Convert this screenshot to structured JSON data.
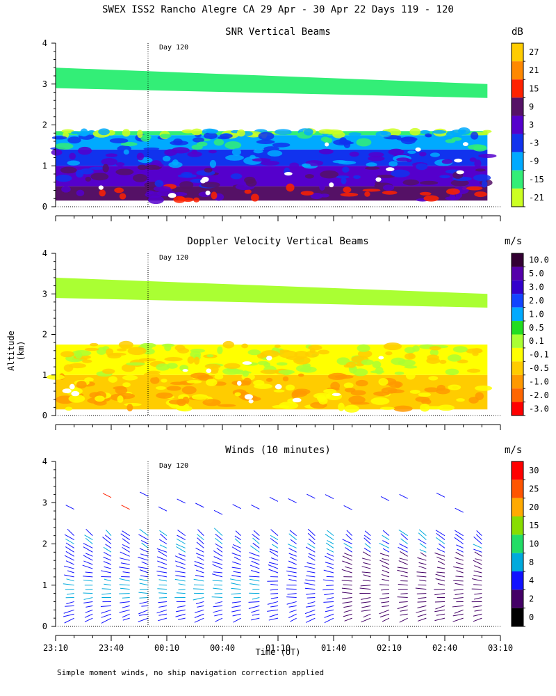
{
  "main_title": "SWEX ISS2 Rancho Alegre CA  29 Apr - 30 Apr 22 Days 119 - 120",
  "y_axis_label": "Altitude (km)",
  "x_axis_label": "Time (UT)",
  "footnote": "Simple moment winds, no ship navigation correction applied",
  "day_marker_label": "Day 120",
  "chart_data": [
    {
      "type": "heatmap",
      "title": "SNR Vertical Beams",
      "unit": "dB",
      "y_ticks": [
        0,
        1,
        2,
        3,
        4
      ],
      "ylim": [
        0,
        4
      ],
      "xlim_minutes": [
        0,
        240
      ],
      "colorbar_labels": [
        "27",
        "21",
        "15",
        "9",
        "3",
        "-3",
        "-9",
        "-15",
        "-21"
      ],
      "colorbar_colors": [
        "#ffcc00",
        "#ff8800",
        "#ff2200",
        "#551166",
        "#5500cc",
        "#1133ee",
        "#00aaff",
        "#33ee77",
        "#ccff22"
      ],
      "layers": [
        {
          "alt_range": [
            0.15,
            0.5
          ],
          "value": 9
        },
        {
          "alt_range": [
            0.5,
            1.0
          ],
          "value": 3
        },
        {
          "alt_range": [
            1.0,
            1.4
          ],
          "value": -3
        },
        {
          "alt_range": [
            1.4,
            1.75
          ],
          "value": -9
        },
        {
          "alt_range": [
            1.75,
            1.85
          ],
          "value": -15
        },
        {
          "alt_range": [
            2.9,
            3.4
          ],
          "value": -15
        }
      ]
    },
    {
      "type": "heatmap",
      "title": "Doppler Velocity Vertical Beams",
      "unit": "m/s",
      "y_ticks": [
        0,
        1,
        2,
        3,
        4
      ],
      "ylim": [
        0,
        4
      ],
      "xlim_minutes": [
        0,
        240
      ],
      "colorbar_labels": [
        "10.0",
        "5.0",
        "3.0",
        "2.0",
        "1.0",
        "0.5",
        "0.1",
        "-0.1",
        "-0.5",
        "-1.0",
        "-2.0",
        "-3.0"
      ],
      "colorbar_colors": [
        "#330033",
        "#5500aa",
        "#3300cc",
        "#1144ff",
        "#00aaff",
        "#22dd22",
        "#aaff33",
        "#ffff00",
        "#ffcc00",
        "#ff9900",
        "#ff6600",
        "#ff0000"
      ],
      "layers": [
        {
          "alt_range": [
            0.15,
            1.0
          ],
          "value": -0.5
        },
        {
          "alt_range": [
            1.0,
            1.75
          ],
          "value": -0.1
        },
        {
          "alt_range": [
            2.9,
            3.4
          ],
          "value": 0.1
        }
      ]
    },
    {
      "type": "wind_barbs",
      "title": "Winds (10 minutes)",
      "unit": "m/s",
      "y_ticks": [
        0,
        1,
        2,
        3,
        4
      ],
      "ylim": [
        0,
        4
      ],
      "xlim_minutes": [
        0,
        240
      ],
      "x_tick_labels": [
        "23:10",
        "23:40",
        "00:10",
        "00:40",
        "01:10",
        "01:40",
        "02:10",
        "02:40",
        "03:10"
      ],
      "colorbar_labels": [
        "30",
        "25",
        "20",
        "15",
        "10",
        "8",
        "4",
        "2",
        "0"
      ],
      "colorbar_colors": [
        "#ff0000",
        "#ff5500",
        "#ffaa00",
        "#88dd00",
        "#22dd66",
        "#00aadd",
        "#1111ff",
        "#440066",
        "#000000"
      ],
      "profile_interval_min": 10,
      "barb_altitude_range": [
        0.2,
        2.3
      ]
    }
  ]
}
